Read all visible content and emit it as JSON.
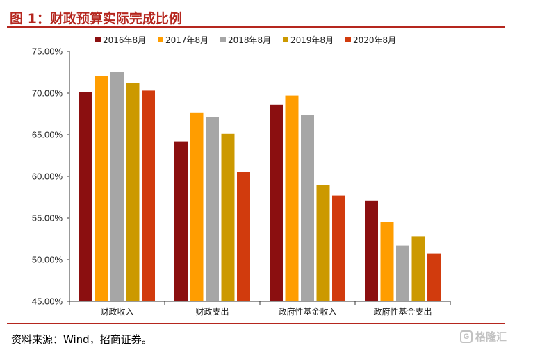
{
  "figure": {
    "title": "图 1：财政预算实际完成比例",
    "source": "资料来源：Wind，招商证券。",
    "watermark": "格隆汇",
    "watermark_icon": "G"
  },
  "colors": {
    "rule": "#b5261e",
    "series": [
      "#8b0f10",
      "#ff9d00",
      "#a6a6a6",
      "#cc9900",
      "#d13b0d"
    ]
  },
  "chart_data": {
    "type": "bar",
    "categories": [
      "财政收入",
      "财政支出",
      "政府性基金收入",
      "政府性基金支出"
    ],
    "series": [
      {
        "name": "2016年8月",
        "values": [
          70.1,
          64.2,
          68.6,
          57.1
        ]
      },
      {
        "name": "2017年8月",
        "values": [
          72.0,
          67.6,
          69.7,
          54.5
        ]
      },
      {
        "name": "2018年8月",
        "values": [
          72.5,
          67.1,
          67.4,
          51.7
        ]
      },
      {
        "name": "2019年8月",
        "values": [
          71.2,
          65.1,
          59.0,
          52.8
        ]
      },
      {
        "name": "2020年8月",
        "values": [
          70.3,
          60.5,
          57.7,
          50.7
        ]
      }
    ],
    "yticks": [
      "45.00%",
      "50.00%",
      "55.00%",
      "60.00%",
      "65.00%",
      "70.00%",
      "75.00%"
    ],
    "ylim": [
      45,
      75
    ],
    "legend": "top",
    "grid": false
  }
}
